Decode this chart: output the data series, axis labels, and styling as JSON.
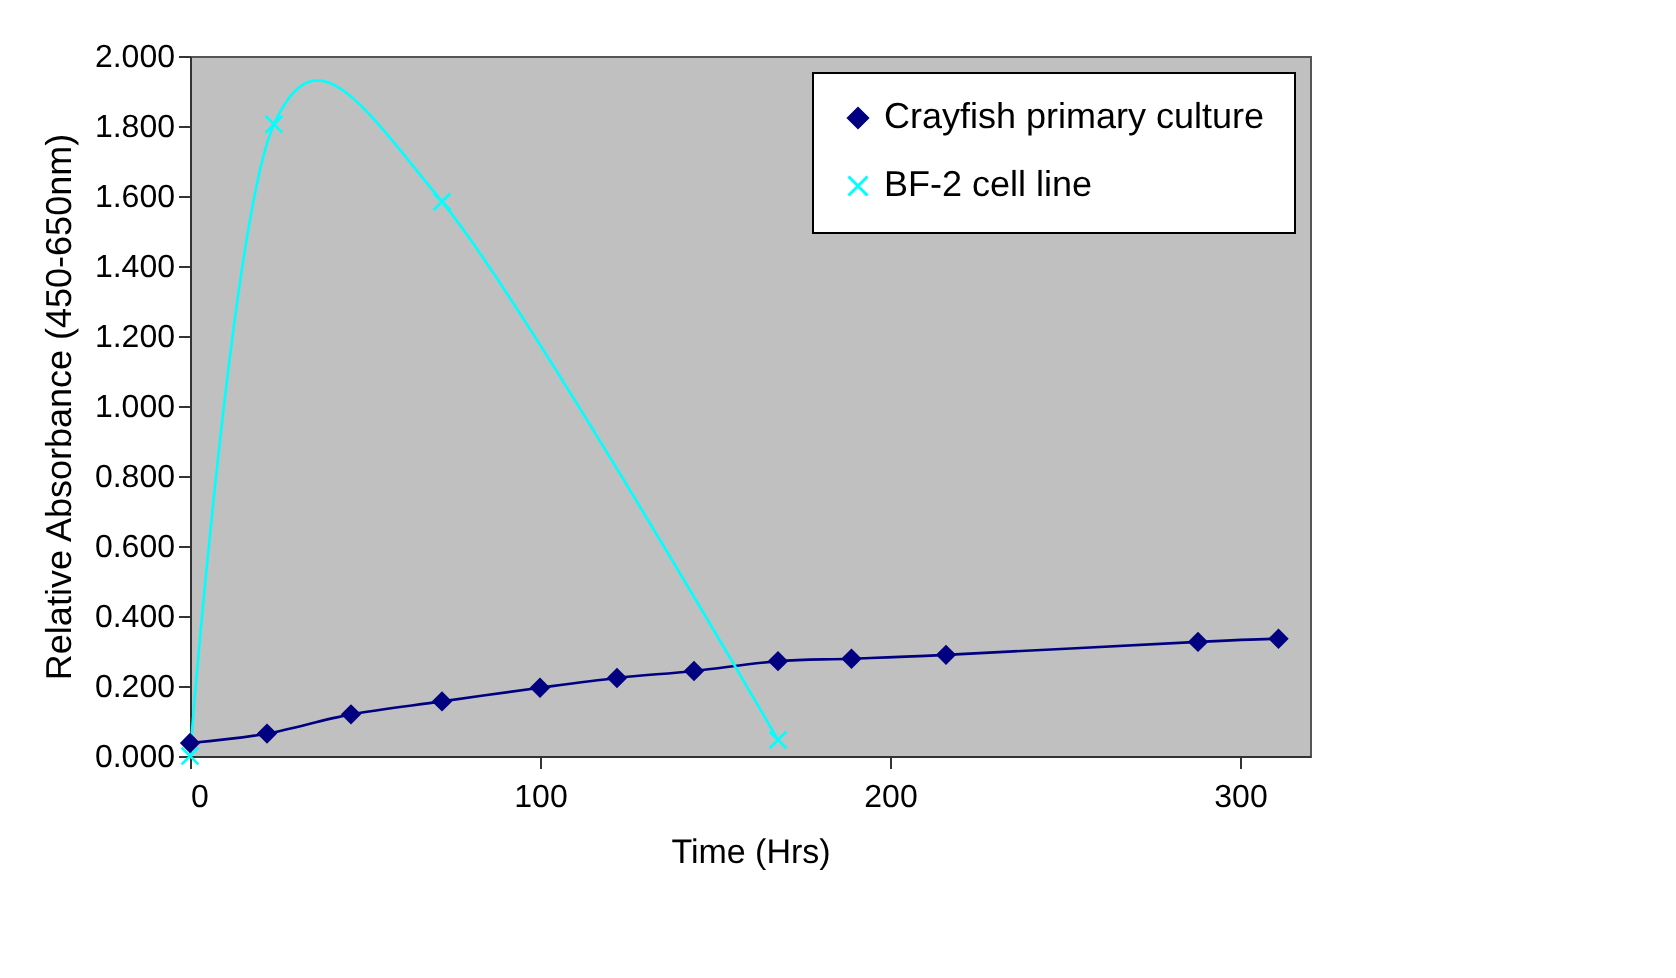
{
  "chart_data": {
    "type": "line",
    "xlabel": "Time (Hrs)",
    "ylabel": "Relative Absorbance (450-650nm)",
    "xlim": [
      0,
      320
    ],
    "xticks": [
      0,
      100,
      200,
      300
    ],
    "ylim": [
      0,
      2
    ],
    "yticks": [
      {
        "value": 0,
        "label": "0.000"
      },
      {
        "value": 0.2,
        "label": "0.200"
      },
      {
        "value": 0.4,
        "label": "0.400"
      },
      {
        "value": 0.6,
        "label": "0.600"
      },
      {
        "value": 0.8,
        "label": "0.800"
      },
      {
        "value": 1.0,
        "label": "1.000"
      },
      {
        "value": 1.2,
        "label": "1.200"
      },
      {
        "value": 1.4,
        "label": "1.400"
      },
      {
        "value": 1.6,
        "label": "1.600"
      },
      {
        "value": 1.8,
        "label": "1.800"
      },
      {
        "value": 2.0,
        "label": "2.000"
      }
    ],
    "grid": false,
    "legend": "top right",
    "series": [
      {
        "name": "Crayfish primary culture",
        "color": "#000080",
        "marker": "diamond",
        "x": [
          0,
          22,
          46,
          72,
          100,
          122,
          144,
          168,
          189,
          216,
          288,
          311
        ],
        "values": [
          0.037,
          0.064,
          0.119,
          0.156,
          0.195,
          0.223,
          0.243,
          0.271,
          0.278,
          0.289,
          0.326,
          0.335
        ]
      },
      {
        "name": "BF-2 cell line",
        "color": "#00ffff",
        "marker": "cross",
        "x": [
          0,
          24,
          72,
          168
        ],
        "values": [
          0.0,
          1.805,
          1.584,
          0.046
        ]
      }
    ]
  }
}
